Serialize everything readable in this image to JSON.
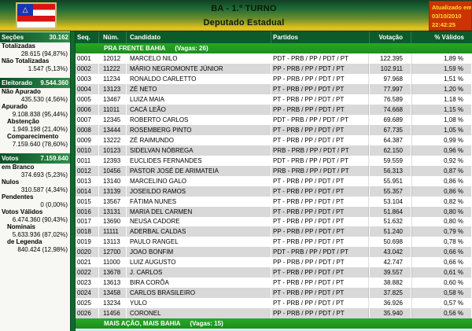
{
  "header": {
    "title": "BA - 1.º TURNO",
    "subtitle": "Deputado Estadual",
    "updated_label": "Atualizado em",
    "updated_date": "03/10/2010",
    "updated_time": "22:42:25",
    "flag_icon": "bahia-flag"
  },
  "colors": {
    "header_green": "#1d6a37",
    "header_yellow": "#e5c41d",
    "table_header_green": "#0d5a2b",
    "coalition_green": "#1f9e22",
    "row_alt_gray": "#d9d9d9",
    "updated_box_red": "#cc3300",
    "updated_box_text": "#ffdd33"
  },
  "sidebar": {
    "sections": [
      {
        "title": "Seções",
        "total": "30.162",
        "items": [
          {
            "label": "Totalizadas",
            "value": "28.615 (94,87%)",
            "indent": false
          },
          {
            "label": "Não Totalizadas",
            "value": "1.547 (5,13%)",
            "indent": false
          }
        ]
      },
      {
        "title": "Eleitorado",
        "total": "9.544.360",
        "items": [
          {
            "label": "Não Apurado",
            "value": "435.530 (4,56%)",
            "indent": false
          },
          {
            "label": "Apurado",
            "value": "9.108.838 (95,44%)",
            "indent": false
          },
          {
            "label": "Abstenção",
            "value": "1.949.198 (21,40%)",
            "indent": true
          },
          {
            "label": "Comparecimento",
            "value": "7.159.640 (78,60%)",
            "indent": true
          }
        ]
      },
      {
        "title": "Votos",
        "total": "7.159.640",
        "items": [
          {
            "label": "em Branco",
            "value": "374.693 (5,23%)",
            "indent": false
          },
          {
            "label": "Nulos",
            "value": "310.587 (4,34%)",
            "indent": false
          },
          {
            "label": "Pendentes",
            "value": "0 (0,00%)",
            "indent": false
          },
          {
            "label": "Votos Válidos",
            "value": "6.474.360 (90,43%)",
            "indent": false
          },
          {
            "label": "Nominais",
            "value": "5.633.936 (87,02%)",
            "indent": true
          },
          {
            "label": "de Legenda",
            "value": "840.424 (12,98%)",
            "indent": true
          }
        ]
      }
    ]
  },
  "table": {
    "columns": [
      "Seq.",
      "Núm.",
      "Candidato",
      "Partidos",
      "Votação",
      "% Válidos"
    ],
    "group_header": "PRA FRENTE BAHIA",
    "group_vagas": "(Vagas: 26)",
    "footer_group": "MAIS AÇÃO, MAIS BAHIA",
    "footer_vagas": "(Vagas: 15)",
    "rows": [
      {
        "seq": "0001",
        "num": "12012",
        "candidato": "MARCELO NILO",
        "partidos": "PDT - PRB / PP / PDT / PT",
        "votacao": "122.395",
        "pct": "1,89 %"
      },
      {
        "seq": "0002",
        "num": "11222",
        "candidato": "MÁRIO NEGROMONTE JÚNIOR",
        "partidos": "PP - PRB / PP / PDT / PT",
        "votacao": "102.911",
        "pct": "1,59 %"
      },
      {
        "seq": "0003",
        "num": "11234",
        "candidato": "RONALDO CARLETTO",
        "partidos": "PP - PRB / PP / PDT / PT",
        "votacao": "97.968",
        "pct": "1,51 %"
      },
      {
        "seq": "0004",
        "num": "13123",
        "candidato": "ZÉ NETO",
        "partidos": "PT - PRB / PP / PDT / PT",
        "votacao": "77.997",
        "pct": "1,20 %"
      },
      {
        "seq": "0005",
        "num": "13467",
        "candidato": "LUIZA MAIA",
        "partidos": "PT - PRB / PP / PDT / PT",
        "votacao": "76.589",
        "pct": "1,18 %"
      },
      {
        "seq": "0006",
        "num": "11011",
        "candidato": "CACÁ LEÃO",
        "partidos": "PP - PRB / PP / PDT / PT",
        "votacao": "74.668",
        "pct": "1,15 %"
      },
      {
        "seq": "0007",
        "num": "12345",
        "candidato": "ROBERTO CARLOS",
        "partidos": "PDT - PRB / PP / PDT / PT",
        "votacao": "69.689",
        "pct": "1,08 %"
      },
      {
        "seq": "0008",
        "num": "13444",
        "candidato": "ROSEMBERG PINTO",
        "partidos": "PT - PRB / PP / PDT / PT",
        "votacao": "67.735",
        "pct": "1,05 %"
      },
      {
        "seq": "0009",
        "num": "13222",
        "candidato": "ZÉ RAIMUNDO",
        "partidos": "PT - PRB / PP / PDT / PT",
        "votacao": "64.387",
        "pct": "0,99 %"
      },
      {
        "seq": "0010",
        "num": "10123",
        "candidato": "SIDELVAN NÓBREGA",
        "partidos": "PRB - PRB / PP / PDT / PT",
        "votacao": "62.150",
        "pct": "0,96 %"
      },
      {
        "seq": "0011",
        "num": "12393",
        "candidato": "EUCLIDES FERNANDES",
        "partidos": "PDT - PRB / PP / PDT / PT",
        "votacao": "59.559",
        "pct": "0,92 %"
      },
      {
        "seq": "0012",
        "num": "10456",
        "candidato": "PASTOR JOSÉ DE ARIMATEIA",
        "partidos": "PRB - PRB / PP / PDT / PT",
        "votacao": "56.313",
        "pct": "0,87 %"
      },
      {
        "seq": "0013",
        "num": "13140",
        "candidato": "MARCELINO GALO",
        "partidos": "PT - PRB / PP / PDT / PT",
        "votacao": "55.951",
        "pct": "0,86 %"
      },
      {
        "seq": "0014",
        "num": "13139",
        "candidato": "JOSEILDO RAMOS",
        "partidos": "PT - PRB / PP / PDT / PT",
        "votacao": "55.357",
        "pct": "0,86 %"
      },
      {
        "seq": "0015",
        "num": "13567",
        "candidato": "FÁTIMA NUNES",
        "partidos": "PT - PRB / PP / PDT / PT",
        "votacao": "53.104",
        "pct": "0,82 %"
      },
      {
        "seq": "0016",
        "num": "13131",
        "candidato": "MARIA DEL CARMEN",
        "partidos": "PT - PRB / PP / PDT / PT",
        "votacao": "51.864",
        "pct": "0,80 %"
      },
      {
        "seq": "0017",
        "num": "13690",
        "candidato": "NEUSA CADORE",
        "partidos": "PT - PRB / PP / PDT / PT",
        "votacao": "51.632",
        "pct": "0,80 %"
      },
      {
        "seq": "0018",
        "num": "11111",
        "candidato": "ADERBAL CALDAS",
        "partidos": "PP - PRB / PP / PDT / PT",
        "votacao": "51.240",
        "pct": "0,79 %"
      },
      {
        "seq": "0019",
        "num": "13113",
        "candidato": "PAULO RANGEL",
        "partidos": "PT - PRB / PP / PDT / PT",
        "votacao": "50.698",
        "pct": "0,78 %"
      },
      {
        "seq": "0020",
        "num": "12700",
        "candidato": "JOAO BONFIM",
        "partidos": "PDT - PRB / PP / PDT / PT",
        "votacao": "43.042",
        "pct": "0,66 %"
      },
      {
        "seq": "0021",
        "num": "11000",
        "candidato": "LUIZ AUGUSTO",
        "partidos": "PP - PRB / PP / PDT / PT",
        "votacao": "42.747",
        "pct": "0,66 %"
      },
      {
        "seq": "0022",
        "num": "13678",
        "candidato": "J. CARLOS",
        "partidos": "PT - PRB / PP / PDT / PT",
        "votacao": "39.557",
        "pct": "0,61 %"
      },
      {
        "seq": "0023",
        "num": "13613",
        "candidato": "BIRA CORÔA",
        "partidos": "PT - PRB / PP / PDT / PT",
        "votacao": "38.882",
        "pct": "0,60 %"
      },
      {
        "seq": "0024",
        "num": "13458",
        "candidato": "CARLOS BRASILEIRO",
        "partidos": "PT - PRB / PP / PDT / PT",
        "votacao": "37.825",
        "pct": "0,58 %"
      },
      {
        "seq": "0025",
        "num": "13234",
        "candidato": "YULO",
        "partidos": "PT - PRB / PP / PDT / PT",
        "votacao": "36.926",
        "pct": "0,57 %"
      },
      {
        "seq": "0026",
        "num": "11456",
        "candidato": "CORONEL",
        "partidos": "PP - PRB / PP / PDT / PT",
        "votacao": "35.940",
        "pct": "0,56 %"
      }
    ]
  }
}
